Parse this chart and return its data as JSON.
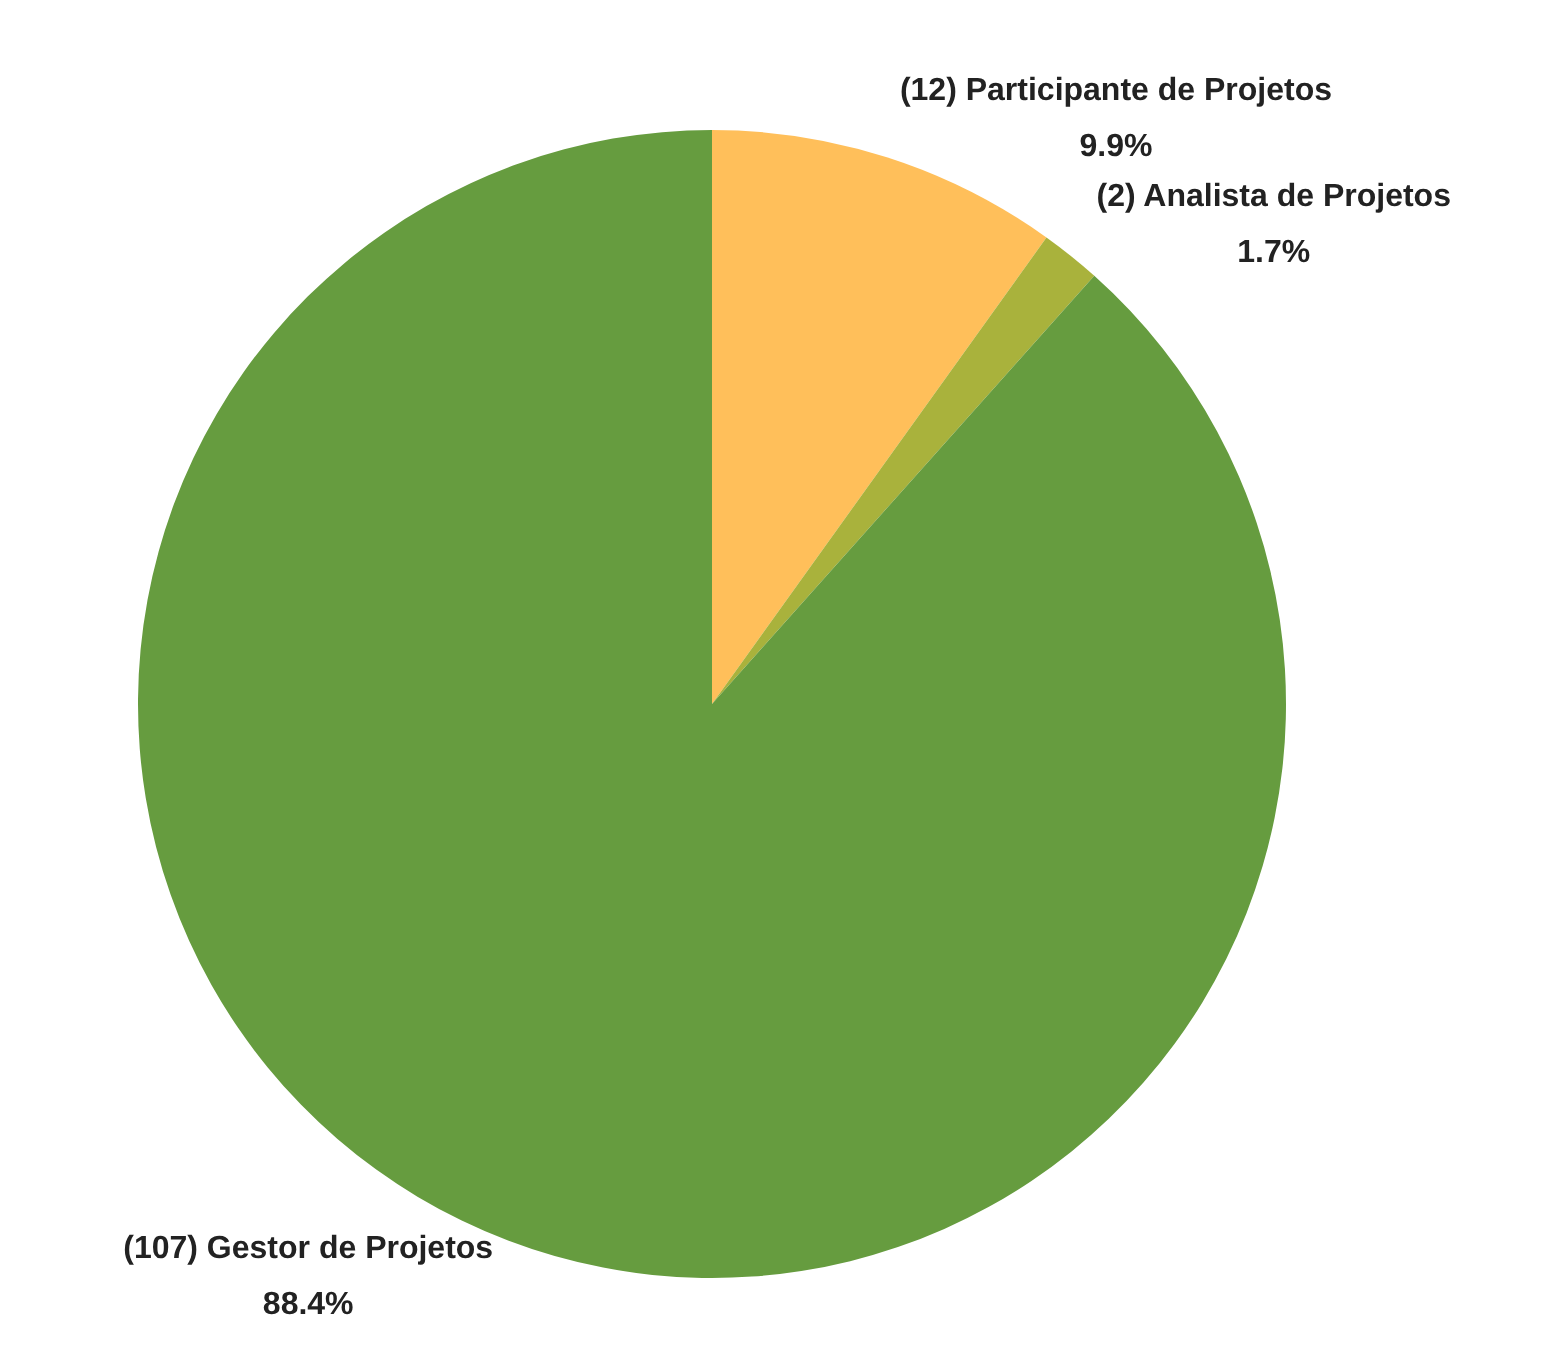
{
  "chart_data": {
    "type": "pie",
    "categories": [
      "(12) Participante de Projetos",
      "(2) Analista de Projetos",
      "(107) Gestor de Projetos"
    ],
    "values": [
      9.9,
      1.7,
      88.4
    ],
    "value_labels": [
      "9.9%",
      "1.7%",
      "88.4%"
    ],
    "colors": [
      "#ffbf5a",
      "#a9b23c",
      "#669c3f"
    ],
    "legend": false
  }
}
